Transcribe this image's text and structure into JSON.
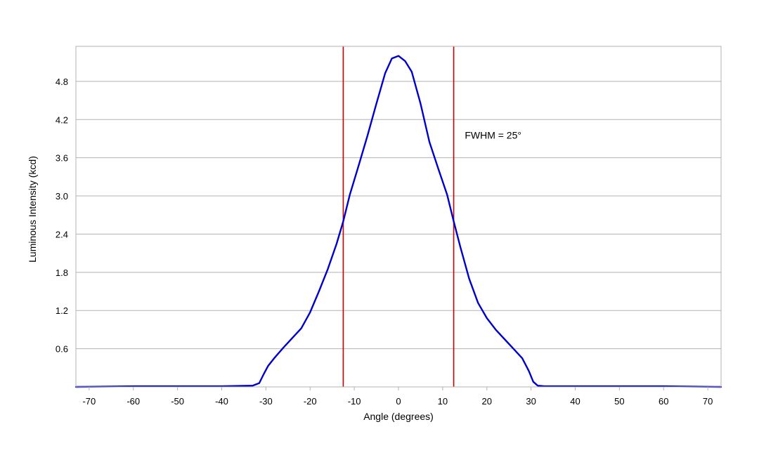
{
  "chart_data": {
    "type": "line",
    "title": "",
    "xlabel": "Angle (degrees)",
    "ylabel": "Luminous Intensity (kcd)",
    "xlim": [
      -73,
      73
    ],
    "ylim": [
      0,
      5.35
    ],
    "x_ticks": [
      "-70",
      "-60",
      "-50",
      "-40",
      "-30",
      "-20",
      "-10",
      "0",
      "10",
      "20",
      "30",
      "40",
      "50",
      "60",
      "70"
    ],
    "y_ticks": [
      "0.6",
      "1.2",
      "1.8",
      "2.4",
      "3.0",
      "3.6",
      "4.2",
      "4.8"
    ],
    "grid": "horizontal",
    "legend": "none",
    "series": [
      {
        "color": "#0000cc",
        "x": [
          -73,
          -60,
          -50,
          -40,
          -33,
          -31.5,
          -30.5,
          -29.5,
          -28,
          -26,
          -24,
          -22,
          -20,
          -18,
          -16,
          -14,
          -12.5,
          -11,
          -9,
          -7,
          -5,
          -3,
          -1.5,
          0,
          1.5,
          3,
          5,
          7,
          9,
          11,
          12.5,
          14,
          16,
          18,
          20,
          22,
          24,
          26,
          28,
          29.5,
          30.5,
          31.5,
          33,
          40,
          50,
          60,
          73
        ],
        "y": [
          0.0,
          0.01,
          0.01,
          0.01,
          0.02,
          0.06,
          0.2,
          0.33,
          0.46,
          0.62,
          0.77,
          0.92,
          1.17,
          1.5,
          1.85,
          2.25,
          2.6,
          3.02,
          3.48,
          3.95,
          4.45,
          4.93,
          5.16,
          5.2,
          5.12,
          4.95,
          4.45,
          3.85,
          3.43,
          3.02,
          2.6,
          2.2,
          1.7,
          1.32,
          1.08,
          0.9,
          0.75,
          0.6,
          0.45,
          0.25,
          0.08,
          0.02,
          0.01,
          0.01,
          0.01,
          0.01,
          0.0
        ]
      }
    ],
    "markers": [
      {
        "x": -12.5,
        "color": "#cc0000"
      },
      {
        "x": 12.5,
        "color": "#cc0000"
      }
    ],
    "annotation": {
      "text": "FWHM = 25°",
      "x": 15,
      "y": 3.9
    }
  }
}
